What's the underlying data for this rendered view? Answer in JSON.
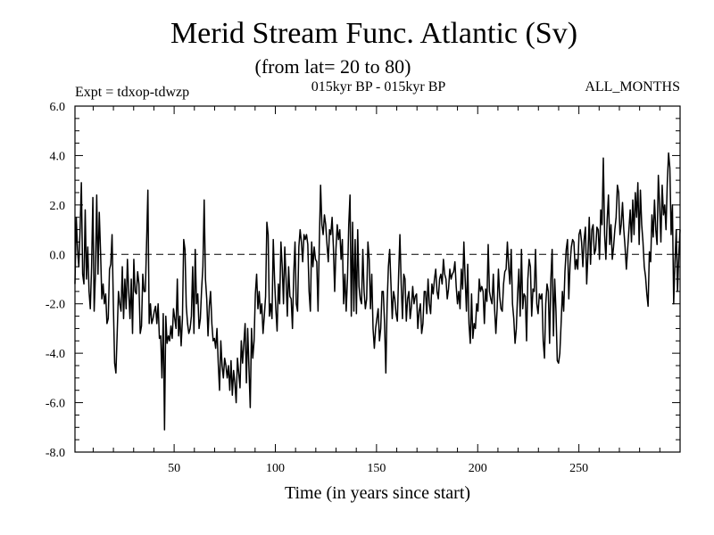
{
  "chart_data": {
    "type": "line",
    "title": "Merid Stream Func. Atlantic (Sv)",
    "subtitle": "(from lat= 20 to 80)",
    "annotations": {
      "left": "Expt = tdxop-tdwzp",
      "center": "015kyr BP - 015kyr BP",
      "right": "ALL_MONTHS"
    },
    "xlabel": "Time (in years since start)",
    "ylabel": "",
    "xlim": [
      1,
      300
    ],
    "ylim": [
      -8,
      6
    ],
    "xticks": [
      50,
      100,
      150,
      200,
      250
    ],
    "xtick_labels": [
      "50",
      "100",
      "150",
      "200",
      "250"
    ],
    "yticks": [
      -8,
      -6,
      -4,
      -2,
      0,
      2,
      4,
      6
    ],
    "ytick_labels": [
      "-8.0",
      "-6.0",
      "-4.0",
      "-2.0",
      "0.0",
      "2.0",
      "4.0",
      "6.0"
    ],
    "reference_line": {
      "y": 0,
      "style": "dashed"
    },
    "grid": false,
    "series": [
      {
        "values": [
          -1.2,
          1.5,
          0.2,
          -0.5,
          1.0,
          2.9,
          -0.8,
          -1.2,
          1.8,
          -1.0,
          0.3,
          -1.5,
          -2.2,
          -0.5,
          2.3,
          -2.3,
          -0.8,
          2.4,
          -0.8,
          1.7,
          0.1,
          -1.8,
          -1.2,
          -2.0,
          -1.6,
          -2.8,
          -2.6,
          -0.6,
          -0.4,
          0.8,
          -2.0,
          -4.4,
          -4.8,
          -3.2,
          -1.5,
          -2.0,
          -2.3,
          -0.5,
          -2.6,
          -1.0,
          -2.2,
          -0.2,
          -1.5,
          -2.6,
          -1.0,
          -3.2,
          -0.2,
          -1.5,
          -1.6,
          -0.7,
          -1.2,
          -3.2,
          -2.9,
          -0.8,
          -1.5,
          -1.5,
          0.5,
          2.6,
          -2.8,
          -2.0,
          -2.8,
          -2.6,
          -2.3,
          -2.1,
          -2.8,
          -2.0,
          -3.4,
          -3.3,
          -5.0,
          -2.4,
          -7.1,
          -2.5,
          -3.6,
          -3.3,
          -3.5,
          -2.9,
          -3.4,
          -2.2,
          -2.6,
          -3.0,
          -1.0,
          -3.3,
          -2.5,
          -3.7,
          -2.6,
          0.6,
          0.2,
          -2.1,
          -2.8,
          -3.2,
          -3.0,
          -2.5,
          -0.5,
          -3.2,
          0.2,
          -2.0,
          -1.6,
          -3.0,
          -2.6,
          -1.4,
          -0.5,
          2.2,
          -1.0,
          -1.8,
          -3.3,
          -2.1,
          -1.5,
          -2.8,
          -3.5,
          -3.4,
          -3.8,
          -3.0,
          -4.4,
          -5.5,
          -3.5,
          -4.5,
          -5.0,
          -4.2,
          -4.5,
          -5.0,
          -4.5,
          -5.5,
          -4.3,
          -5.7,
          -4.7,
          -5.2,
          -6.0,
          -4.2,
          -4.8,
          -5.4,
          -3.5,
          -4.4,
          -3.6,
          -2.8,
          -5.2,
          -3.0,
          -4.6,
          -6.2,
          -3.0,
          -4.2,
          -3.5,
          -1.6,
          -0.8,
          -2.2,
          -1.5,
          -2.4,
          -2.0,
          -3.2,
          -2.5,
          -1.7,
          1.3,
          0.8,
          -2.5,
          -2.0,
          -2.6,
          0.6,
          -1.0,
          -2.2,
          -3.1,
          -1.2,
          -2.0,
          0.5,
          -0.5,
          -2.0,
          0.3,
          -1.0,
          -2.5,
          -0.5,
          -1.7,
          -1.8,
          -3.0,
          -0.8,
          0.5,
          -2.0,
          -2.3,
          0.3,
          1.0,
          0.5,
          -0.3,
          0.8,
          0.6,
          0.8,
          0.4,
          -1.5,
          -2.3,
          0.5,
          -0.5,
          0.3,
          -0.2,
          -0.3,
          -2.3,
          0.5,
          2.8,
          1.2,
          0.8,
          1.6,
          1.2,
          0.4,
          -0.3,
          1.0,
          0.8,
          1.5,
          0.3,
          -1.5,
          0.2,
          1.2,
          0.6,
          1.0,
          -0.2,
          0.6,
          -2.0,
          -0.8,
          -2.3,
          -1.0,
          1.2,
          2.4,
          -2.5,
          1.3,
          -2.3,
          0.6,
          -2.4,
          1.0,
          -1.3,
          -1.8,
          -2.0,
          0.2,
          -1.5,
          -2.2,
          -1.8,
          0.5,
          -0.2,
          -2.2,
          -0.8,
          -3.0,
          -3.8,
          -3.0,
          -2.6,
          -2.2,
          -3.5,
          -3.0,
          -1.5,
          -1.5,
          -2.8,
          -4.8,
          -2.0,
          -0.5,
          0.2,
          -1.2,
          -2.6,
          -1.5,
          -1.8,
          -2.4,
          -2.7,
          -0.8,
          0.8,
          -1.2,
          -2.6,
          -0.8,
          -1.0,
          -2.7,
          -1.8,
          -1.5,
          -2.6,
          -2.1,
          -1.3,
          -2.0,
          -1.7,
          -1.6,
          -3.0,
          -2.3,
          -2.0,
          -3.2,
          -2.8,
          -1.5,
          -1.5,
          -2.4,
          -1.0,
          -2.0,
          -2.4,
          -1.2,
          -1.6,
          -1.0,
          -0.6,
          -1.5,
          -1.8,
          -1.0,
          -0.8,
          -1.2,
          -0.2,
          -0.8,
          -1.0,
          -1.8,
          -1.4,
          -0.6,
          -1.0,
          -0.8,
          -0.7,
          -0.3,
          -1.3,
          -2.0,
          -1.5,
          -2.2,
          -0.6,
          -1.4,
          0.5,
          -1.0,
          -2.3,
          -0.4,
          -2.8,
          -3.6,
          -1.6,
          -3.4,
          -2.8,
          -3.0,
          -2.0,
          -2.3,
          -1.0,
          -1.5,
          -1.3,
          -1.5,
          -2.8,
          -1.4,
          -1.9,
          0.4,
          -1.5,
          -1.8,
          -2.0,
          -0.8,
          -2.2,
          -3.2,
          -2.2,
          -0.6,
          -1.7,
          -2.2,
          -2.3,
          -1.2,
          -0.7,
          -0.6,
          0.5,
          -0.5,
          -1.2,
          0.2,
          -2.0,
          -2.6,
          -3.6,
          -3.0,
          -1.6,
          -0.6,
          -2.5,
          0.2,
          -2.2,
          -1.6,
          -1.7,
          -3.5,
          -1.0,
          -0.2,
          -0.5,
          -2.5,
          -1.4,
          -1.5,
          0.2,
          -2.0,
          -2.4,
          -1.6,
          -1.8,
          -1.6,
          -3.5,
          -4.2,
          -2.0,
          -1.2,
          -1.5,
          -3.6,
          -1.0,
          0.2,
          -3.3,
          -1.0,
          -2.3,
          -4.3,
          -4.4,
          -4.0,
          -2.8,
          -1.5,
          -2.3,
          -0.7,
          0.2,
          0.6,
          -1.8,
          -0.4,
          0.3,
          0.6,
          0.5,
          -0.6,
          -0.2,
          -0.6,
          0.8,
          1.0,
          0.5,
          -0.5,
          0.6,
          1.1,
          -1.2,
          0.0,
          1.5,
          -0.4,
          1.0,
          1.2,
          0.0,
          0.2,
          1.1,
          1.0,
          -0.2,
          1.8,
          1.2,
          3.9,
          0.8,
          -0.2,
          1.4,
          2.4,
          0.4,
          1.2,
          -0.2,
          0.3,
          1.0,
          1.5,
          2.8,
          2.5,
          0.8,
          1.2,
          2.1,
          1.0,
          0.3,
          -0.6,
          0.2,
          1.0,
          1.8,
          0.5,
          2.2,
          0.8,
          2.5,
          1.5,
          2.9,
          0.4,
          2.6,
          1.2,
          0.5,
          -0.5,
          -0.9,
          -1.6,
          -2.1,
          0.1,
          -0.3,
          1.6,
          0.7,
          2.2,
          1.0,
          0.4,
          3.2,
          2.0,
          0.5,
          2.8,
          1.6,
          2.0,
          1.0,
          2.9,
          4.1,
          3.5,
          0.8,
          2.0,
          -2.0,
          -0.3,
          1.0,
          -1.5,
          0.0,
          1.0
        ]
      }
    ]
  }
}
